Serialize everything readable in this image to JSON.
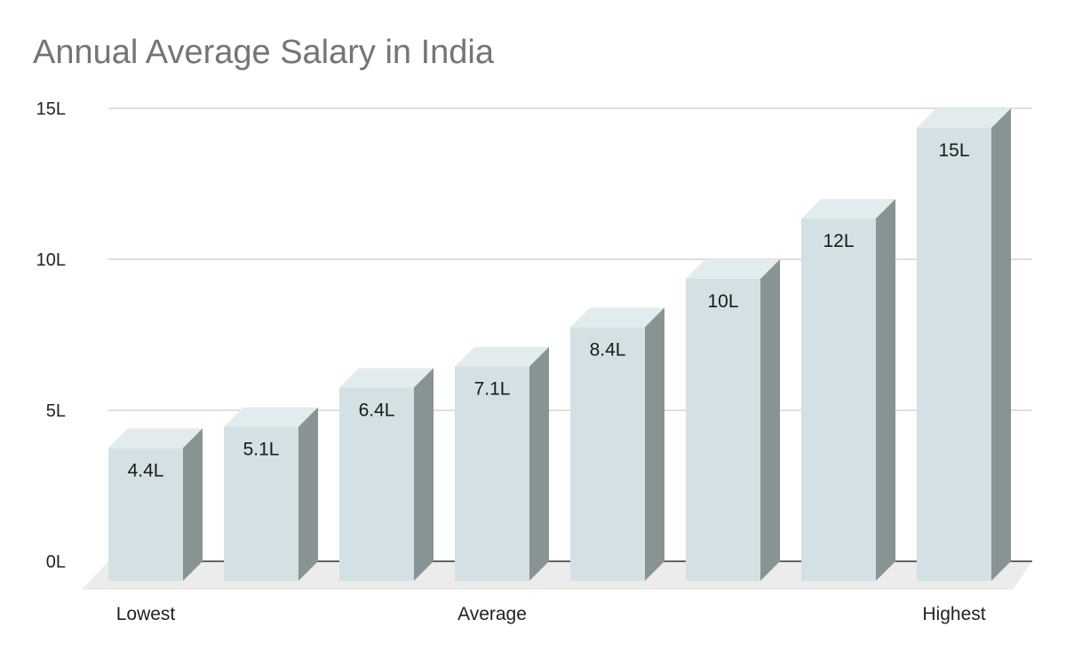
{
  "chart_data": {
    "type": "bar",
    "title": "Annual Average Salary in India",
    "xlabel": "",
    "ylabel": "",
    "ylim": [
      0,
      15
    ],
    "y_ticks": [
      {
        "value": 0,
        "label": "0L"
      },
      {
        "value": 5,
        "label": "5L"
      },
      {
        "value": 10,
        "label": "10L"
      },
      {
        "value": 15,
        "label": "15L"
      }
    ],
    "categories": [
      "Lowest",
      "",
      "",
      "Average",
      "",
      "",
      "",
      "Highest"
    ],
    "values": [
      4.4,
      5.1,
      6.4,
      7.1,
      8.4,
      10,
      12,
      15
    ],
    "data_labels": [
      "4.4L",
      "5.1L",
      "6.4L",
      "7.1L",
      "8.4L",
      "10L",
      "12L",
      "15L"
    ],
    "grid": true,
    "legend": "none",
    "style": "3d",
    "colors": {
      "bar_front": "#d3e1e4",
      "bar_top": "#e2ecee",
      "bar_side": "#879493",
      "floor": "#ececec",
      "gridline": "#cccccc",
      "baseline": "#333333",
      "title": "#757575"
    }
  }
}
